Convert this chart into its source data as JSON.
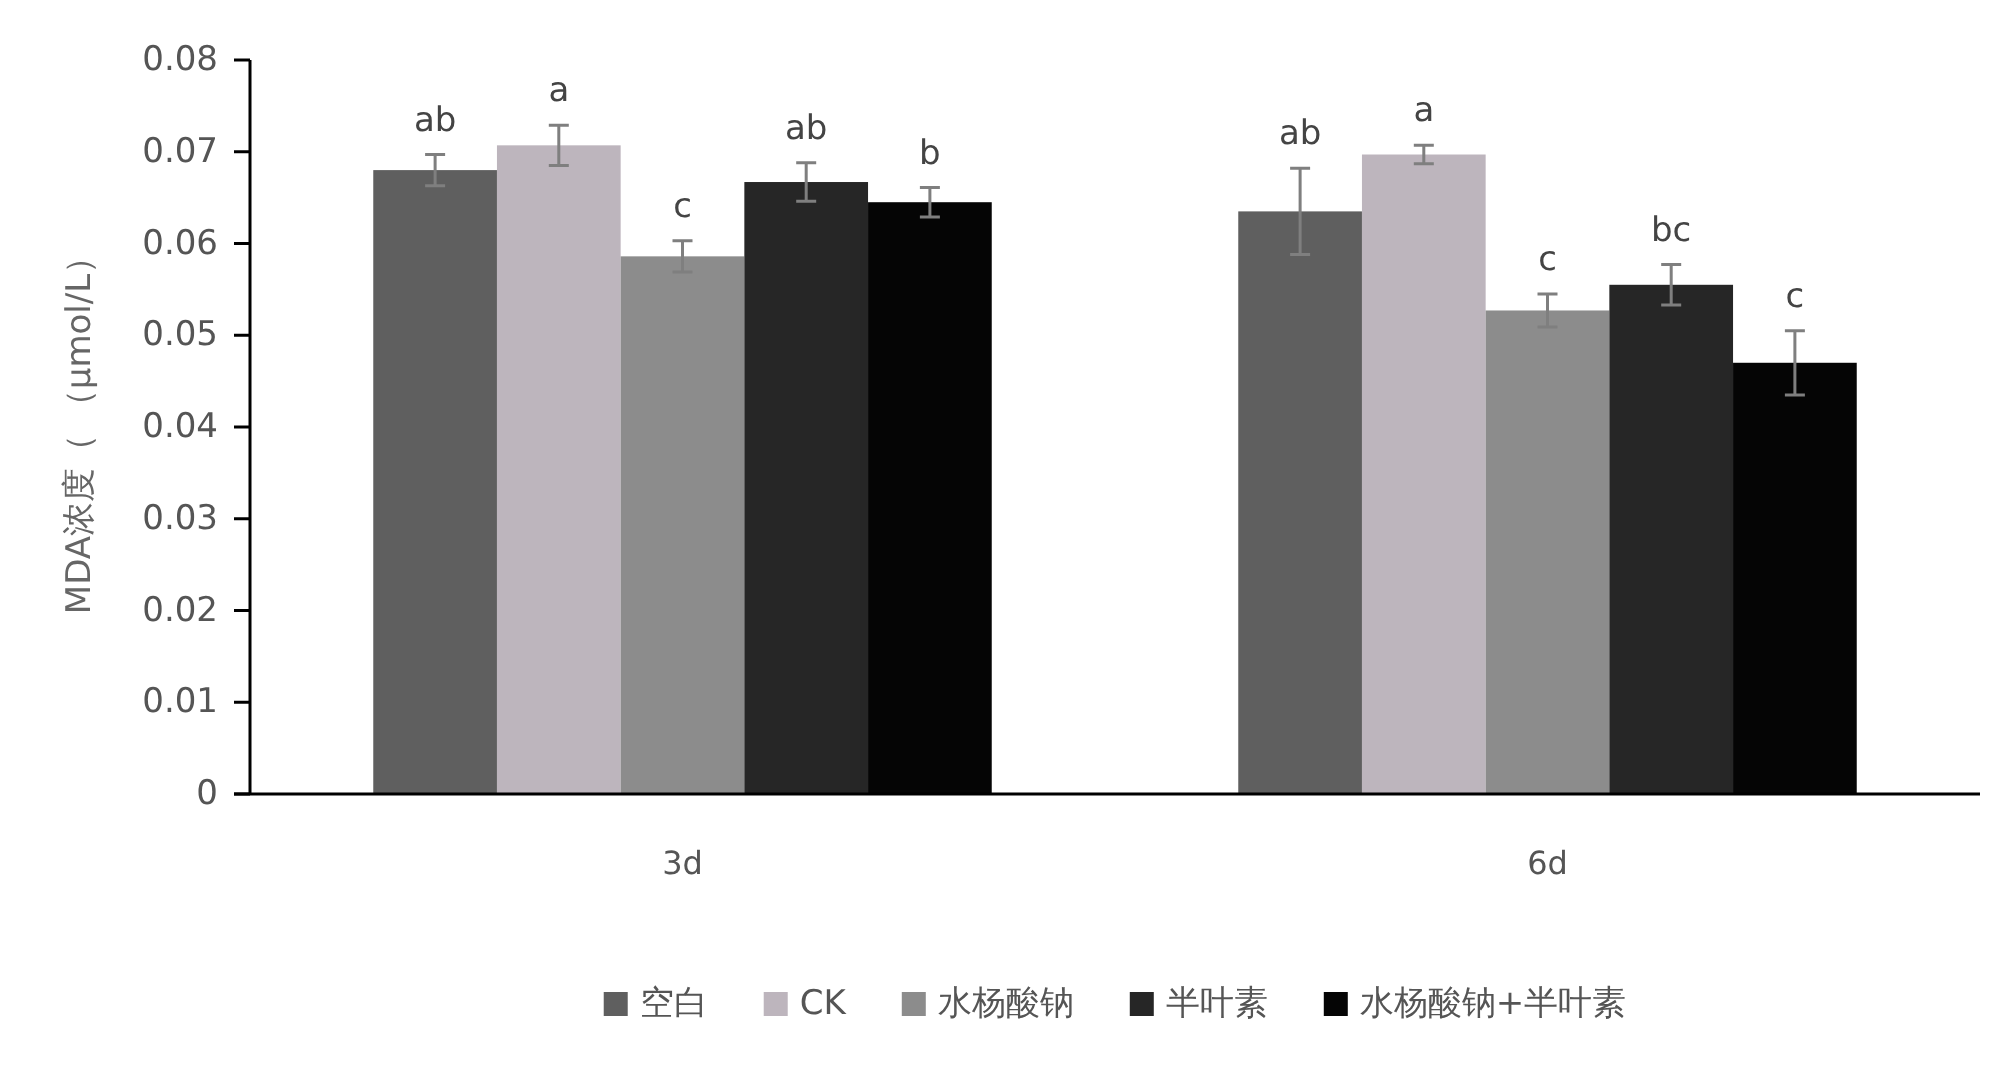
{
  "chart_data": {
    "type": "bar",
    "ylabel": "MDA浓度（ （μmol/L）",
    "categories": [
      "3d",
      "6d"
    ],
    "ylim": [
      0,
      0.08
    ],
    "yticks": [
      0,
      0.01,
      0.02,
      0.03,
      0.04,
      0.05,
      0.06,
      0.07,
      0.08
    ],
    "grid": false,
    "legend": "bottom",
    "series": [
      {
        "name": "空白",
        "color": "#5f5f5f",
        "values": [
          0.068,
          0.0635
        ],
        "errors": [
          0.0017,
          0.0047
        ],
        "value_labels": [
          "ab",
          "ab"
        ]
      },
      {
        "name": "CK",
        "color": "#bdb5bd",
        "values": [
          0.0707,
          0.0697
        ],
        "errors": [
          0.0022,
          0.001
        ],
        "value_labels": [
          "a",
          "a"
        ]
      },
      {
        "name": "水杨酸钠",
        "color": "#8c8c8c",
        "values": [
          0.0586,
          0.0527
        ],
        "errors": [
          0.0017,
          0.0018
        ],
        "value_labels": [
          "c",
          "c"
        ]
      },
      {
        "name": "半叶素",
        "color": "#262626",
        "values": [
          0.0667,
          0.0555
        ],
        "errors": [
          0.0021,
          0.0022
        ],
        "value_labels": [
          "ab",
          "bc"
        ]
      },
      {
        "name": "水杨酸钠+半叶素",
        "color": "#050505",
        "values": [
          0.0645,
          0.047
        ],
        "errors": [
          0.0016,
          0.0035
        ],
        "value_labels": [
          "b",
          "c"
        ]
      }
    ]
  }
}
